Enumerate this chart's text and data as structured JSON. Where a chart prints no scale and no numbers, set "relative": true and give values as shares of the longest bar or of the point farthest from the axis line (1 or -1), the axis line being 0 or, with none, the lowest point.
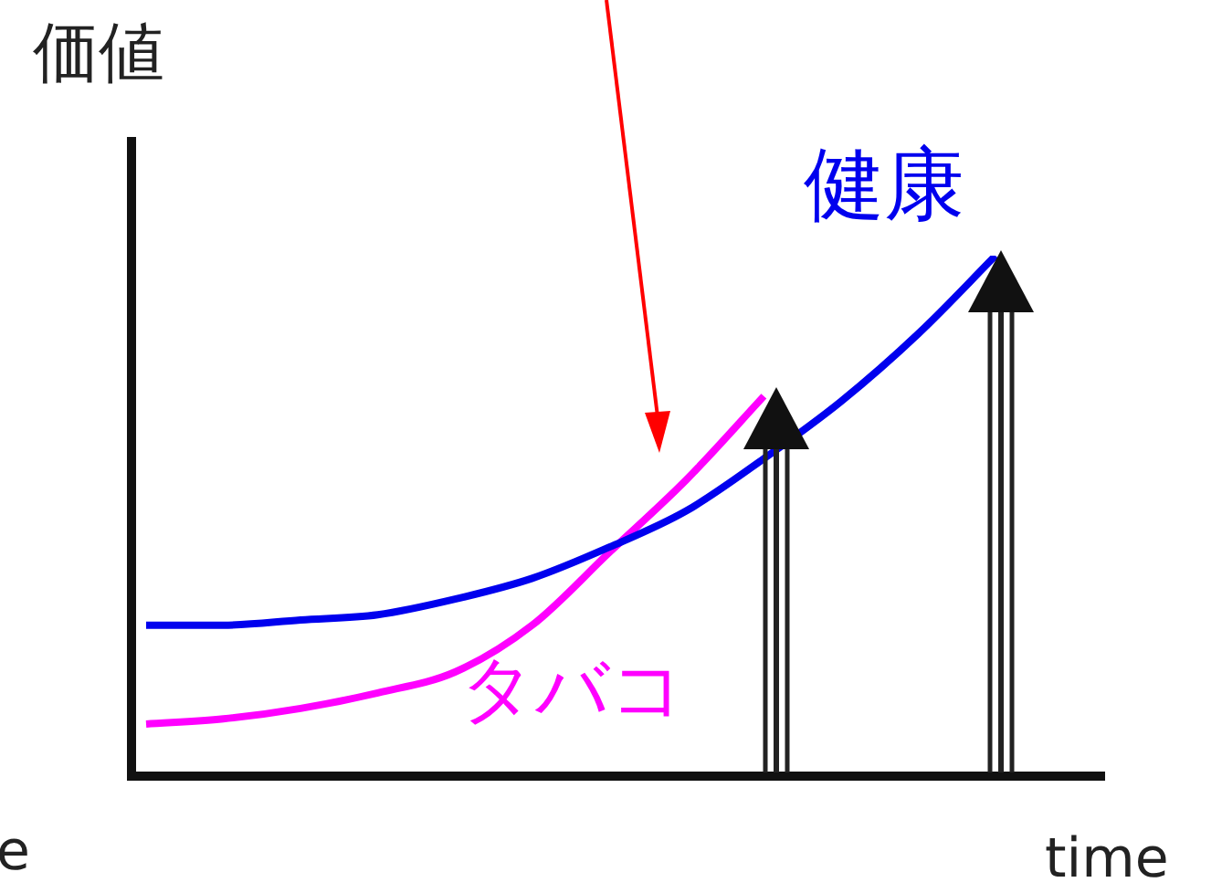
{
  "chart_data": {
    "type": "line",
    "relative": true,
    "ylabel": "価値",
    "annotations": [
      "time",
      "e"
    ],
    "categories": [
      null,
      null,
      null,
      null,
      null,
      null,
      null,
      null,
      null,
      null,
      null,
      null
    ],
    "series": [
      {
        "name": "健康",
        "color": "#0000ee",
        "values": [
          0.29,
          0.29,
          0.3,
          0.31,
          0.34,
          0.38,
          0.44,
          0.51,
          0.61,
          0.72,
          0.85,
          1
        ]
      },
      {
        "name": "タバコ",
        "color": "#ff00ff",
        "values": [
          0.1,
          0.11,
          0.13,
          0.16,
          0.2,
          0.29,
          0.43,
          0.57,
          0.73,
          null,
          null,
          null
        ]
      }
    ],
    "legend": false,
    "marker": "none",
    "line_style": "solid"
  }
}
